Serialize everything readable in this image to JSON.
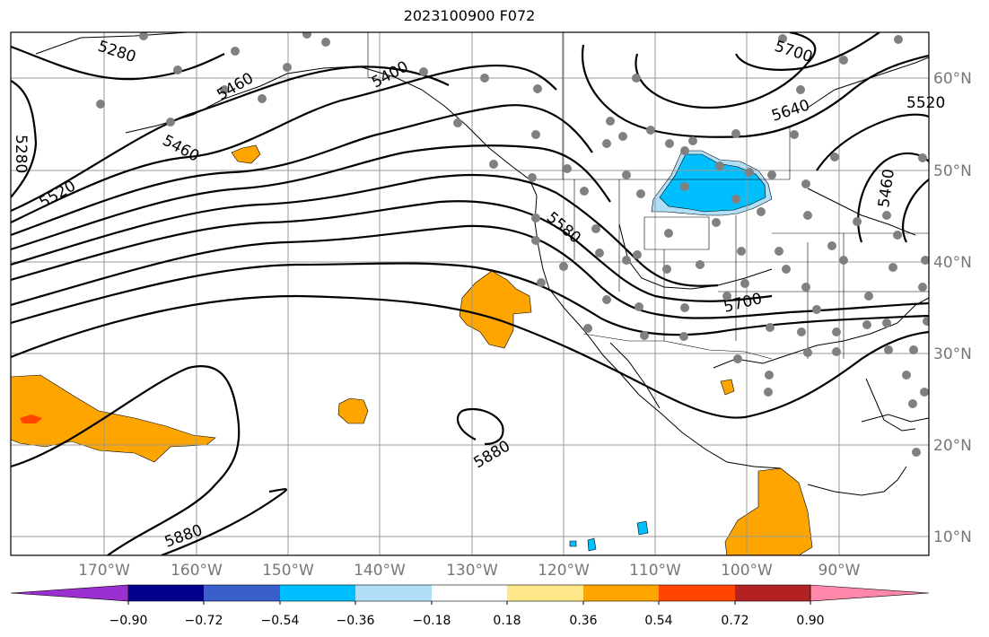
{
  "title": "2023100900 F072",
  "lat_labels": [
    "60°N",
    "50°N",
    "40°N",
    "30°N",
    "20°N",
    "10°N"
  ],
  "lon_labels": [
    "170°W",
    "160°W",
    "150°W",
    "140°W",
    "130°W",
    "120°W",
    "110°W",
    "100°W",
    "90°W"
  ],
  "contour_labels": [
    "5280",
    "5400",
    "5460",
    "5520",
    "5580",
    "5640",
    "5700",
    "5700",
    "5880",
    "5880",
    "5460",
    "5520",
    "5280",
    "5460"
  ],
  "colorbar": {
    "ticks": [
      "−0.90",
      "−0.72",
      "−0.54",
      "−0.36",
      "−0.18",
      "0.18",
      "0.36",
      "0.54",
      "0.72",
      "0.90"
    ],
    "colors": [
      "#9b30d0",
      "#00008b",
      "#3a5fcd",
      "#00bfff",
      "#b0e0f8",
      "#ffffff",
      "#ffe88a",
      "#ffa500",
      "#ff4500",
      "#b22222",
      "#ff88aa"
    ]
  },
  "colors": {
    "positive_fill": "#ffa500",
    "negative_fill": "#00bfff",
    "station": "#808080",
    "grid": "#999999"
  }
}
